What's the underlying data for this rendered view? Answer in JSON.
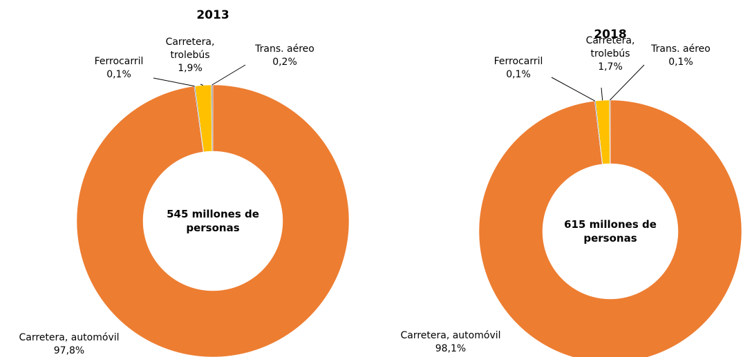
{
  "chart_data": [
    {
      "type": "pie",
      "donut": true,
      "title": "2013",
      "categories": [
        "Carretera, automóvil",
        "Ferrocarril",
        "Carretera, trolebús",
        "Trans. aéreo"
      ],
      "values": [
        97.8,
        0.1,
        1.9,
        0.2
      ],
      "value_labels": [
        "97,8%",
        "0,1%",
        "1,9%",
        "0,2%"
      ],
      "colors": [
        "#ED7D31",
        "#4472C4",
        "#FFC000",
        "#A5A5A5"
      ],
      "center_label": "545 millones de personas"
    },
    {
      "type": "pie",
      "donut": true,
      "title": "2018",
      "categories": [
        "Carretera, automóvil",
        "Ferrocarril",
        "Carretera, trolebús",
        "Trans. aéreo"
      ],
      "values": [
        98.1,
        0.1,
        1.7,
        0.1
      ],
      "value_labels": [
        "98,1%",
        "0,1%",
        "1,7%",
        "0,1%"
      ],
      "colors": [
        "#ED7D31",
        "#4472C4",
        "#FFC000",
        "#A5A5A5"
      ],
      "center_label": "615 millones de personas"
    }
  ]
}
